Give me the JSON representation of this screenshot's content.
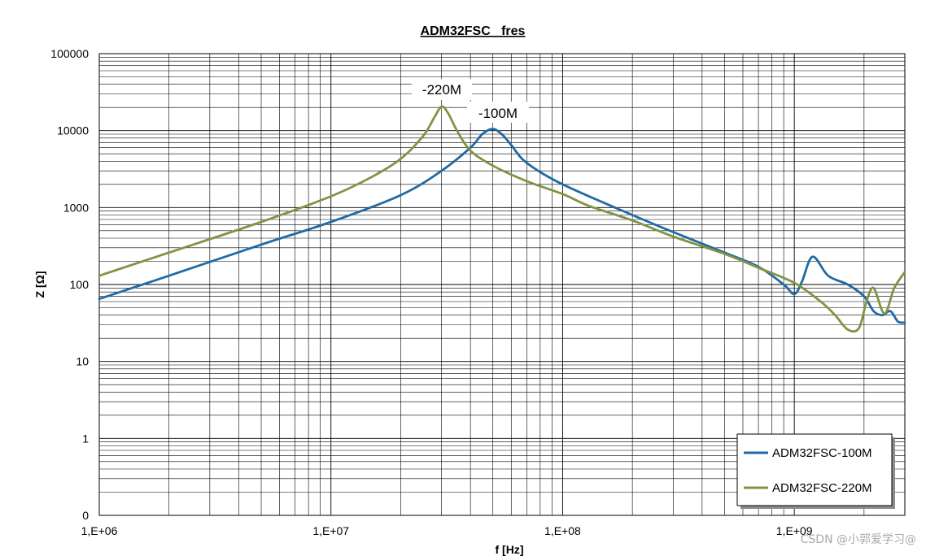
{
  "chart_data": {
    "type": "line",
    "title": "ADM32FSC   fres",
    "xlabel": "f [Hz]",
    "ylabel": "Z [Ω]",
    "xscale": "log",
    "yscale": "log",
    "xlim": [
      1000000,
      3000000000
    ],
    "ylim": [
      0.1,
      100000
    ],
    "x_tick_values": [
      1000000,
      10000000,
      100000000,
      1000000000
    ],
    "x_tick_labels": [
      "1,E+06",
      "1,E+07",
      "1,E+08",
      "1,E+09"
    ],
    "y_tick_values": [
      0.1,
      1,
      10,
      100,
      1000,
      10000,
      100000
    ],
    "y_tick_labels": [
      "0",
      "1",
      "10",
      "100",
      "1000",
      "10000",
      "100000"
    ],
    "grid": true,
    "legend_position": "bottom-right",
    "series": [
      {
        "name": "ADM32FSC-100M",
        "color": "#1f6aa5",
        "points": [
          [
            1000000,
            65
          ],
          [
            2000000,
            130
          ],
          [
            5000000,
            330
          ],
          [
            10000000,
            650
          ],
          [
            20000000,
            1450
          ],
          [
            30000000,
            3000
          ],
          [
            40000000,
            6000
          ],
          [
            45000000,
            9000
          ],
          [
            50000000,
            10500
          ],
          [
            55000000,
            8800
          ],
          [
            60000000,
            6500
          ],
          [
            70000000,
            3800
          ],
          [
            100000000,
            2000
          ],
          [
            200000000,
            800
          ],
          [
            300000000,
            480
          ],
          [
            500000000,
            260
          ],
          [
            700000000,
            170
          ],
          [
            900000000,
            100
          ],
          [
            1000000000,
            75
          ],
          [
            1080000000,
            110
          ],
          [
            1200000000,
            230
          ],
          [
            1400000000,
            130
          ],
          [
            1700000000,
            100
          ],
          [
            2000000000,
            70
          ],
          [
            2200000000,
            45
          ],
          [
            2400000000,
            40
          ],
          [
            2600000000,
            45
          ],
          [
            2800000000,
            33
          ],
          [
            3000000000,
            32
          ]
        ]
      },
      {
        "name": "ADM32FSC-220M",
        "color": "#7f9543",
        "points": [
          [
            1000000,
            130
          ],
          [
            2000000,
            260
          ],
          [
            5000000,
            650
          ],
          [
            10000000,
            1400
          ],
          [
            15000000,
            2500
          ],
          [
            20000000,
            4300
          ],
          [
            25000000,
            8500
          ],
          [
            28000000,
            15000
          ],
          [
            30000000,
            20500
          ],
          [
            32000000,
            17000
          ],
          [
            35000000,
            10000
          ],
          [
            40000000,
            5500
          ],
          [
            50000000,
            3500
          ],
          [
            70000000,
            2200
          ],
          [
            100000000,
            1500
          ],
          [
            130000000,
            1050
          ],
          [
            200000000,
            680
          ],
          [
            300000000,
            420
          ],
          [
            500000000,
            250
          ],
          [
            700000000,
            165
          ],
          [
            1000000000,
            105
          ],
          [
            1300000000,
            60
          ],
          [
            1500000000,
            40
          ],
          [
            1700000000,
            26
          ],
          [
            1900000000,
            27
          ],
          [
            2050000000,
            60
          ],
          [
            2200000000,
            90
          ],
          [
            2450000000,
            42
          ],
          [
            2700000000,
            90
          ],
          [
            3000000000,
            145
          ]
        ]
      }
    ],
    "annotations": [
      "-220M",
      "-100M"
    ]
  },
  "watermark": "CSDN @小郭爱学习@"
}
